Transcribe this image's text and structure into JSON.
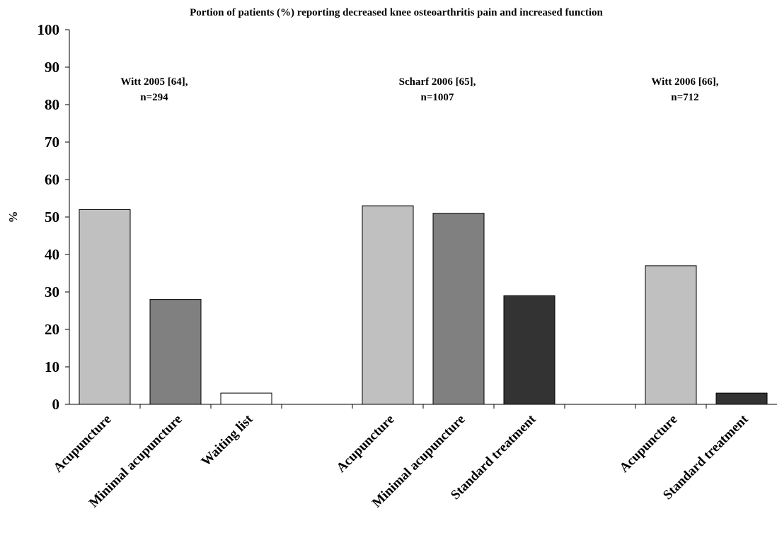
{
  "chart_data": {
    "type": "bar",
    "title": "Portion of patients (%) reporting decreased knee osteoarthritis pain and increased function",
    "ylabel": "%",
    "ylim": [
      0,
      100
    ],
    "yticks": [
      0,
      10,
      20,
      30,
      40,
      50,
      60,
      70,
      80,
      90,
      100
    ],
    "grid": false,
    "categories": [
      "Acupuncture",
      "Minimal acupuncture",
      "Waiting list",
      "",
      "Acupuncture",
      "Minimal acupuncture",
      "Standard treatment",
      "",
      "Acupuncture",
      "Standard treatment"
    ],
    "values": [
      52,
      28,
      3,
      null,
      53,
      51,
      29,
      null,
      37,
      3
    ],
    "bar_colors": [
      "#c0c0c0",
      "#808080",
      "#ffffff",
      null,
      "#c0c0c0",
      "#808080",
      "#333333",
      null,
      "#c0c0c0",
      "#333333"
    ],
    "annotations": [
      {
        "lines": [
          "Witt 2005 [64],",
          "n=294"
        ]
      },
      {
        "lines": [
          "Scharf 2006 [65],",
          "n=1007"
        ]
      },
      {
        "lines": [
          "Witt 2006 [66],",
          "n=712"
        ]
      }
    ]
  }
}
